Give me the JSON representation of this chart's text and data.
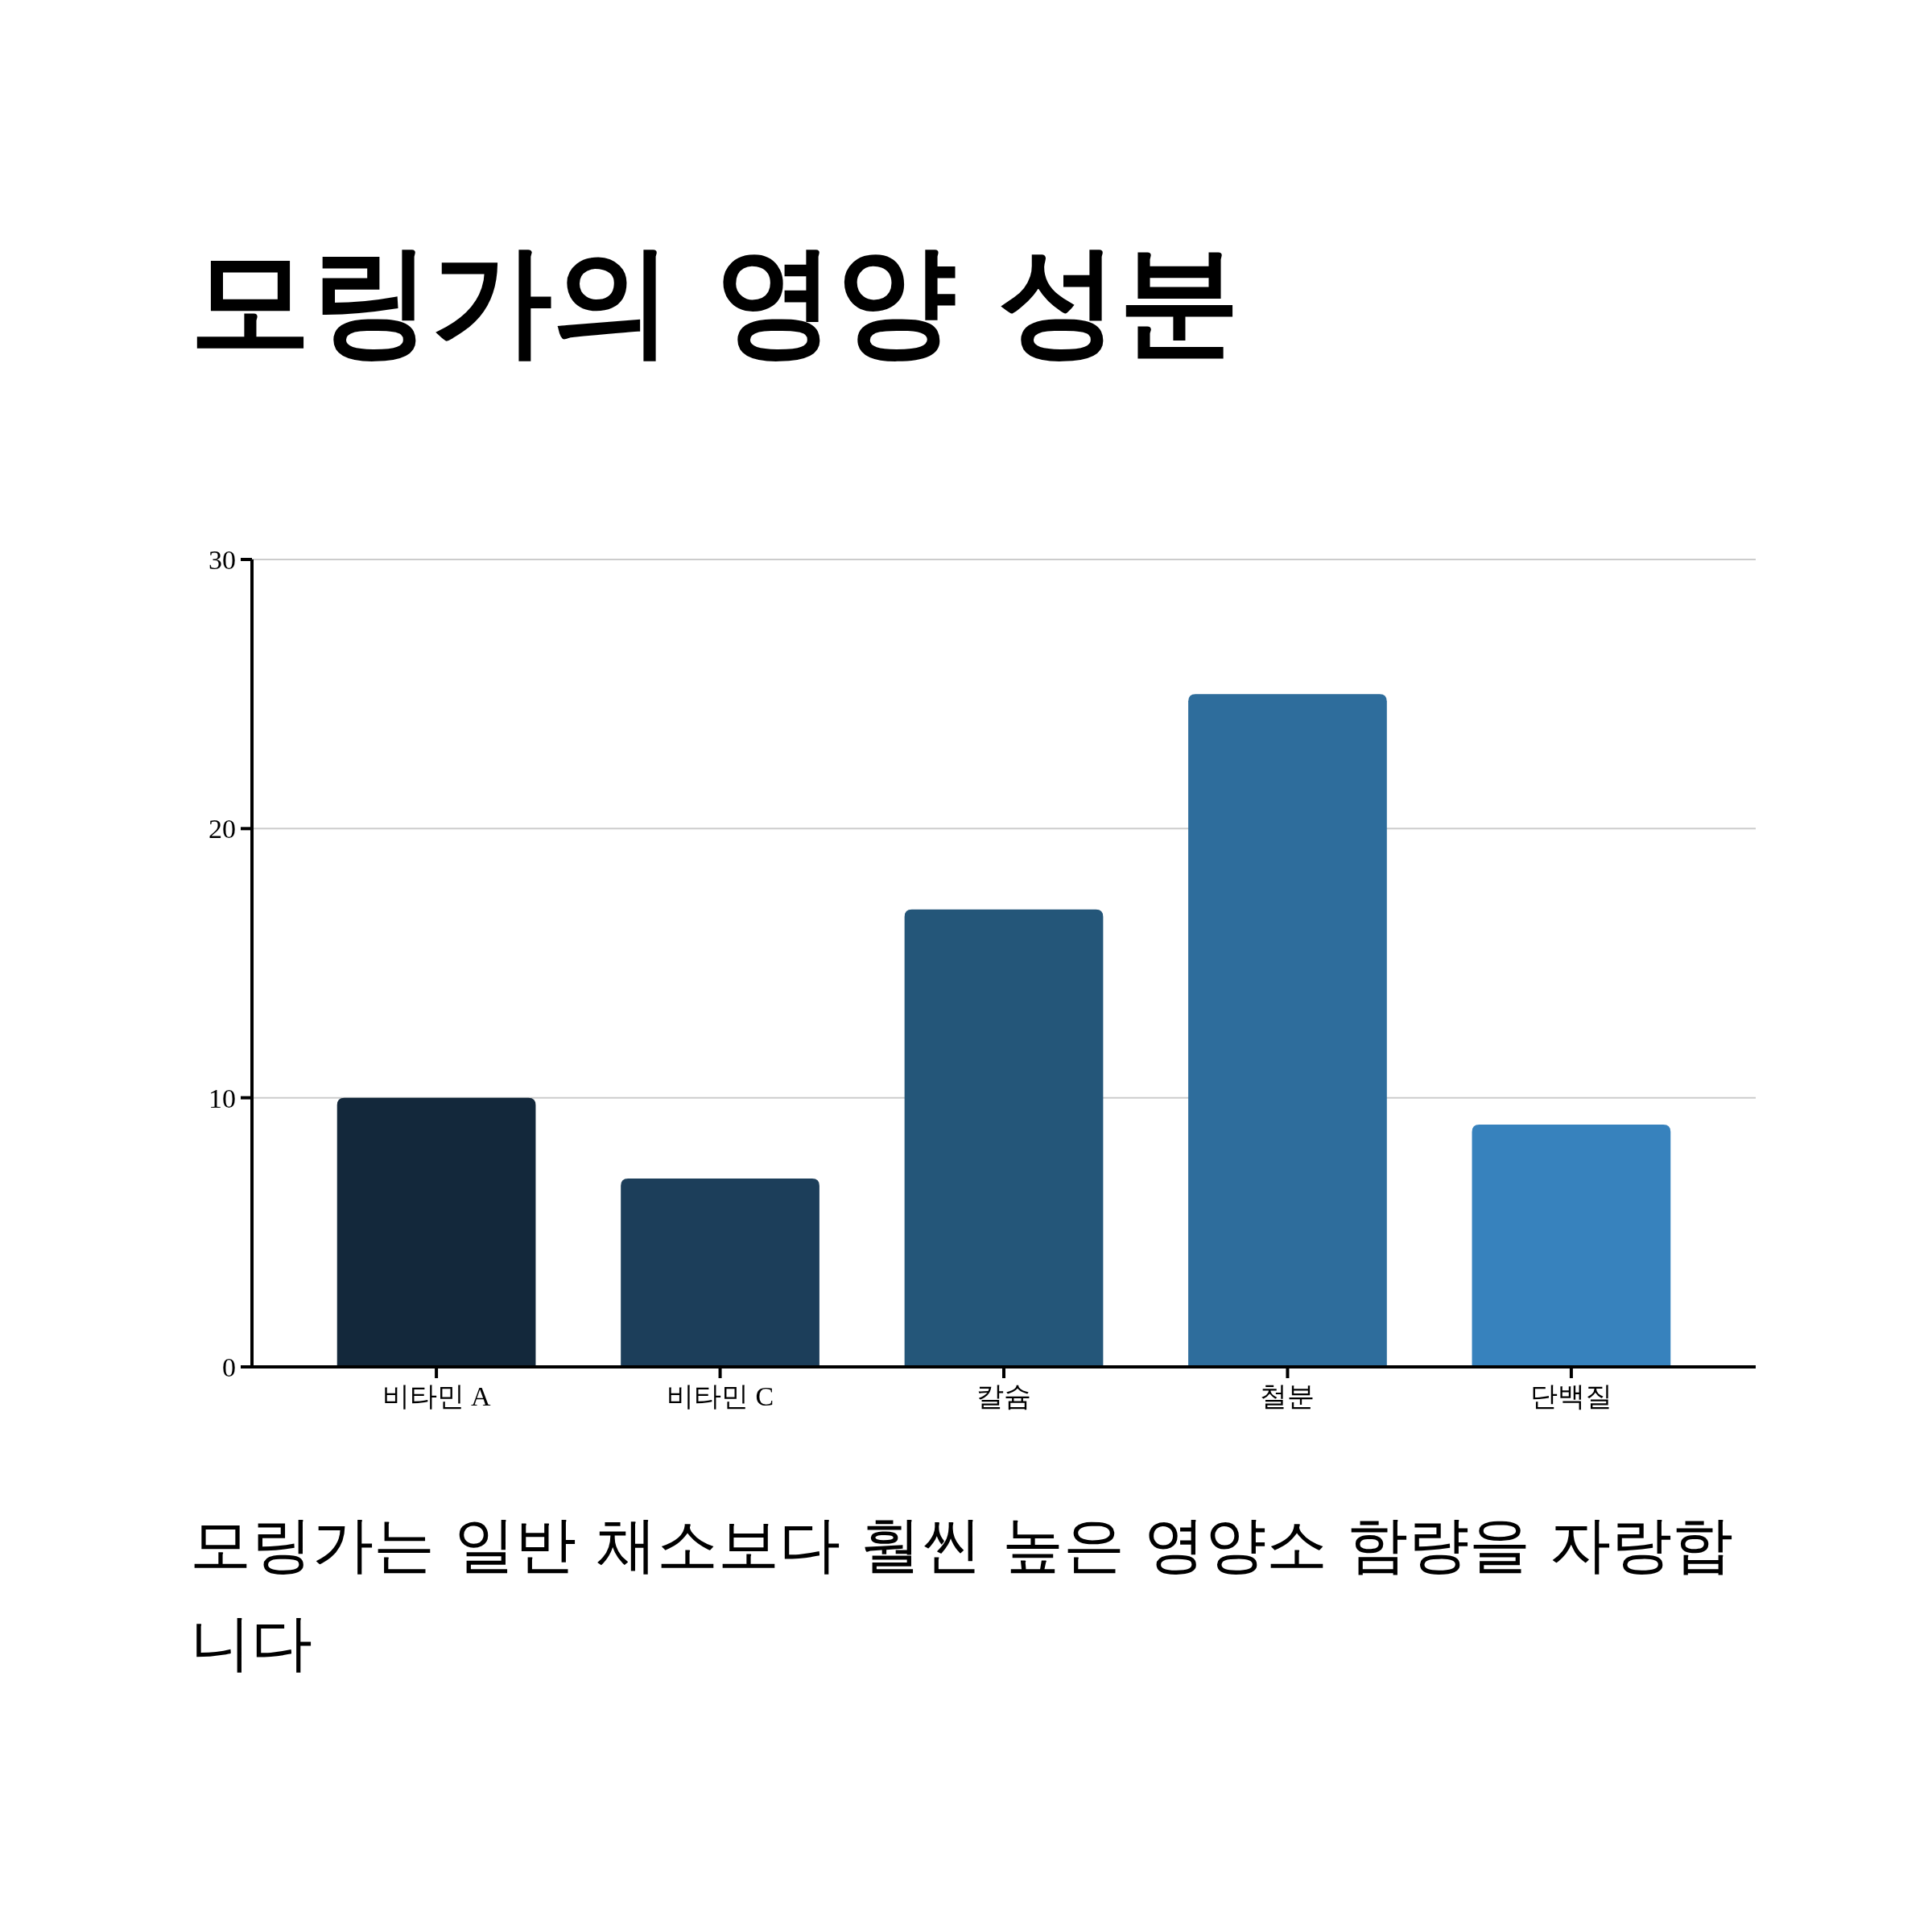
{
  "chart_data": {
    "type": "bar",
    "title": "모링가의 영양 성분",
    "subtitle": "모링가는 일반 채소보다 훨씬 높은 영양소 함량을 자랑합니다",
    "categories": [
      "비타민 A",
      "비타민 C",
      "칼슘",
      "철분",
      "단백질"
    ],
    "values": [
      10,
      7,
      17,
      25,
      9
    ],
    "colors": [
      "#13283b",
      "#1c3e5a",
      "#245679",
      "#2e6d9c",
      "#3782bd"
    ],
    "ylim": [
      0,
      30
    ],
    "yticks": [
      0,
      10,
      20,
      30
    ],
    "grid": "y"
  }
}
